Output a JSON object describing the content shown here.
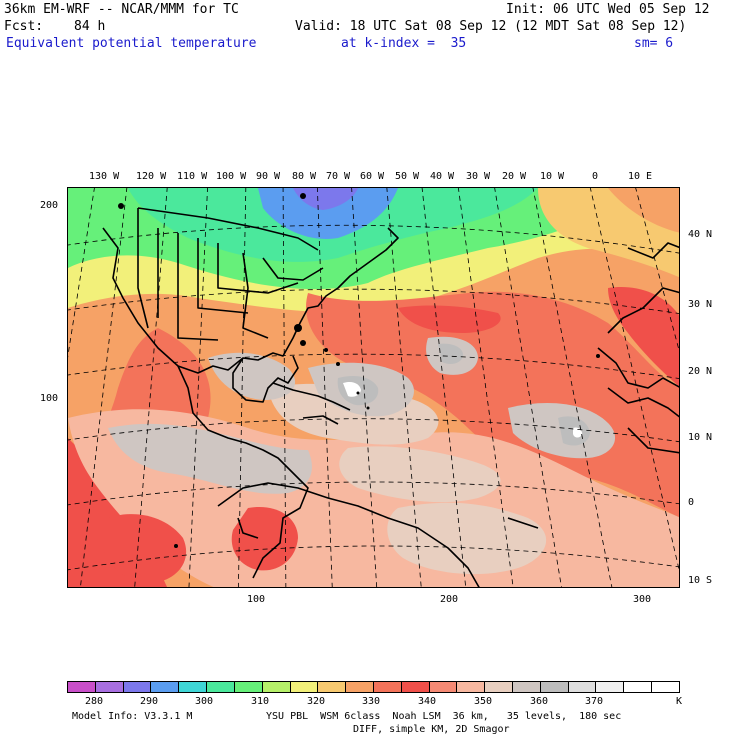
{
  "header": {
    "model": "36km EM-WRF -- NCAR/MMM for TC",
    "init": "Init: 06 UTC Wed 05 Sep 12",
    "fcst_label": "Fcst:",
    "fcst_value": "84 h",
    "valid": "Valid: 18 UTC Sat 08 Sep 12 (12 MDT Sat 08 Sep 12)",
    "field": "Equivalent potential temperature",
    "level": "at k-index =  35",
    "smooth": "sm= 6"
  },
  "map": {
    "lon_labels": [
      "130 W",
      "120 W",
      "110 W",
      "100 W",
      "90 W",
      "80 W",
      "70 W",
      "60 W",
      "50 W",
      "40 W",
      "30 W",
      "20 W",
      "10 W",
      "0",
      "10 E"
    ],
    "lat_labels": [
      "40 N",
      "30 N",
      "20 N",
      "10 N",
      "0",
      "10 S"
    ],
    "grid_y_labels": [
      "200",
      "100"
    ],
    "grid_x_labels": [
      "100",
      "200",
      "300"
    ]
  },
  "colorbar": {
    "labels": [
      "280",
      "290",
      "300",
      "310",
      "320",
      "330",
      "340",
      "350",
      "360",
      "370"
    ],
    "unit": "K",
    "colors": [
      "#c94fc9",
      "#a86fe0",
      "#7c78ec",
      "#5b9df0",
      "#3fd6d6",
      "#4be89c",
      "#66f07a",
      "#b6f06a",
      "#f2f07a",
      "#f7c970",
      "#f6a266",
      "#f3735a",
      "#f0504a",
      "#f58a74",
      "#f7b8a0",
      "#e8cfc0",
      "#cfc6c2",
      "#bdbdbd",
      "#dedede",
      "#f0f0f0",
      "#ffffff",
      "#ffffff"
    ]
  },
  "footer": {
    "line1_left": "Model Info: V3.3.1 M",
    "line1_right": "YSU PBL  WSM 6class  Noah LSM  36 km,   35 levels,  180 sec",
    "line2": "DIFF, simple KM, 2D Smagor"
  }
}
